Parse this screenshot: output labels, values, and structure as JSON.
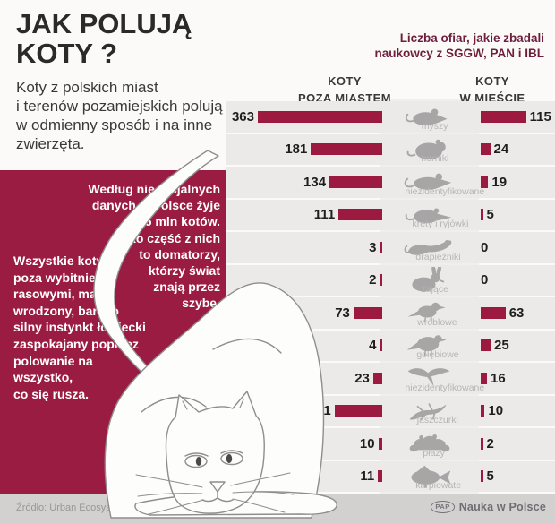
{
  "title": "JAK POLUJĄ\nKOTY ?",
  "intro": "Koty z polskich miast\ni terenów pozamiejskich polują\nw odmienny sposób i na inne\nzwierzęta.",
  "red_panel": {
    "bg_color": "#9b1c43",
    "note_right": "Według nieoficjalnych\ndanych w Polsce żyje\nok. 6 mln kotów.\nTylko część z nich\nto domatorzy,\nktórzy świat\nznają przez\nszybę.",
    "note_left": "Wszystkie koty,\npoza wybitnie\nrasowymi, mają\nwrodzony, bardzo\nsilny instynkt łowiecki\nzaspokajany poprzez\npolowanie na\nwszystko,\nco się rusza."
  },
  "chart_header": {
    "subtitle": "Liczba ofiar, jakie zbadali\nnaukowcy z SGGW, PAN i IBL",
    "subtitle_color": "#6e1e3c",
    "col_left": "KOTY\nPOZA MIASTEM",
    "col_right": "KOTY\nW MIEŚCIE"
  },
  "chart_data": {
    "type": "bar",
    "orientation": "horizontal, mirrored (left = outside city, right = in city)",
    "bar_color": "#9c1a3f",
    "categories": [
      "myszy",
      "norniki",
      "niezidentyfikowane",
      "krety i ryjówki",
      "drapieżniki",
      "zające",
      "wróblowe",
      "gołębiowe",
      "niezidentyfikowane",
      "jaszczurki",
      "płazy",
      "karpiowate"
    ],
    "icons": [
      "mouse",
      "vole",
      "rat",
      "shrew",
      "weasel",
      "hare",
      "sparrow",
      "pigeon",
      "flying-bird",
      "lizard",
      "frog",
      "fish"
    ],
    "series": [
      {
        "name": "KOTY POZA MIASTEM",
        "values": [
          363,
          181,
          134,
          111,
          3,
          2,
          73,
          4,
          23,
          121,
          10,
          11
        ]
      },
      {
        "name": "KOTY W MIEŚCIE",
        "values": [
          115,
          24,
          19,
          5,
          0,
          0,
          63,
          25,
          16,
          10,
          2,
          5
        ]
      }
    ]
  },
  "footer": {
    "source": "Źródło: Urban Ecosystems",
    "logo_abbr": "PAP",
    "logo_text": "Nauka w Polsce"
  }
}
